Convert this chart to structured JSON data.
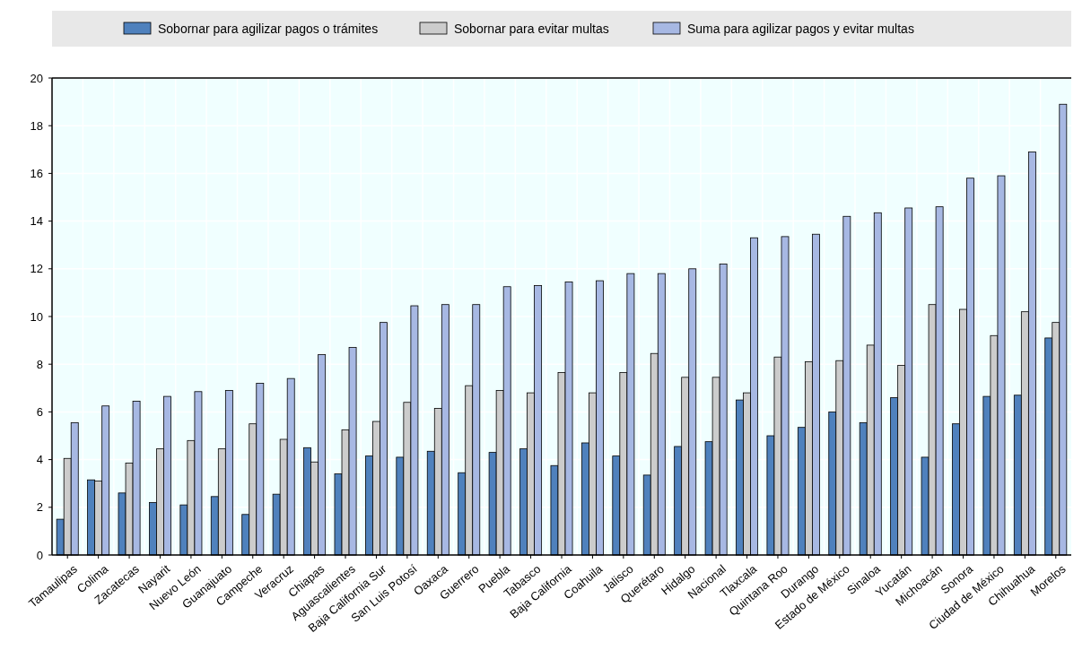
{
  "chart_data": {
    "type": "bar",
    "categories": [
      "Tamaulipas",
      "Colima",
      "Zacatecas",
      "Nayarit",
      "Nuevo León",
      "Guanajuato",
      "Campeche",
      "Veracruz",
      "Chiapas",
      "Aguascalientes",
      "Baja California Sur",
      "San Luis Potosí",
      "Oaxaca",
      "Guerrero",
      "Puebla",
      "Tabasco",
      "Baja California",
      "Coahuila",
      "Jalisco",
      "Querétaro",
      "Hidalgo",
      "Nacional",
      "Tlaxcala",
      "Quintana Roo",
      "Durango",
      "Estado de México",
      "Sinaloa",
      "Yucatán",
      "Michoacán",
      "Sonora",
      "Ciudad de México",
      "Chihuahua",
      "Morelos"
    ],
    "series": [
      {
        "name": "Sobornar para agilizar pagos o trámites",
        "color": "#4f81bd",
        "values": [
          1.5,
          3.15,
          2.6,
          2.2,
          2.1,
          2.45,
          1.7,
          2.55,
          4.5,
          3.4,
          4.15,
          4.1,
          4.35,
          3.45,
          4.3,
          4.45,
          3.75,
          4.7,
          4.15,
          3.35,
          4.55,
          4.75,
          6.5,
          5.0,
          5.35,
          6.0,
          5.55,
          6.6,
          4.1,
          5.5,
          6.65,
          6.7,
          9.1
        ]
      },
      {
        "name": "Sobornar para evitar multas",
        "color": "#cccccc",
        "values": [
          4.05,
          3.1,
          3.85,
          4.45,
          4.8,
          4.45,
          5.5,
          4.85,
          3.9,
          5.25,
          5.6,
          6.4,
          6.15,
          7.1,
          6.9,
          6.8,
          7.65,
          6.8,
          7.65,
          8.45,
          7.45,
          7.45,
          6.8,
          8.3,
          8.1,
          8.15,
          8.8,
          7.95,
          10.5,
          10.3,
          9.2,
          10.2,
          9.75
        ]
      },
      {
        "name": "Suma para agilizar pagos y evitar multas",
        "color": "#a7b8e3",
        "values": [
          5.55,
          6.25,
          6.45,
          6.65,
          6.85,
          6.9,
          7.2,
          7.4,
          8.4,
          8.7,
          9.75,
          10.45,
          10.5,
          10.5,
          11.25,
          11.3,
          11.45,
          11.5,
          11.8,
          11.8,
          12.0,
          12.2,
          13.3,
          13.35,
          13.45,
          14.2,
          14.35,
          14.55,
          14.6,
          15.8,
          15.9,
          16.9,
          18.9
        ]
      }
    ],
    "ylim": [
      0,
      20
    ],
    "yticks": [
      0,
      2,
      4,
      6,
      8,
      10,
      12,
      14,
      16,
      18,
      20
    ],
    "grid": true,
    "legend": "top"
  }
}
